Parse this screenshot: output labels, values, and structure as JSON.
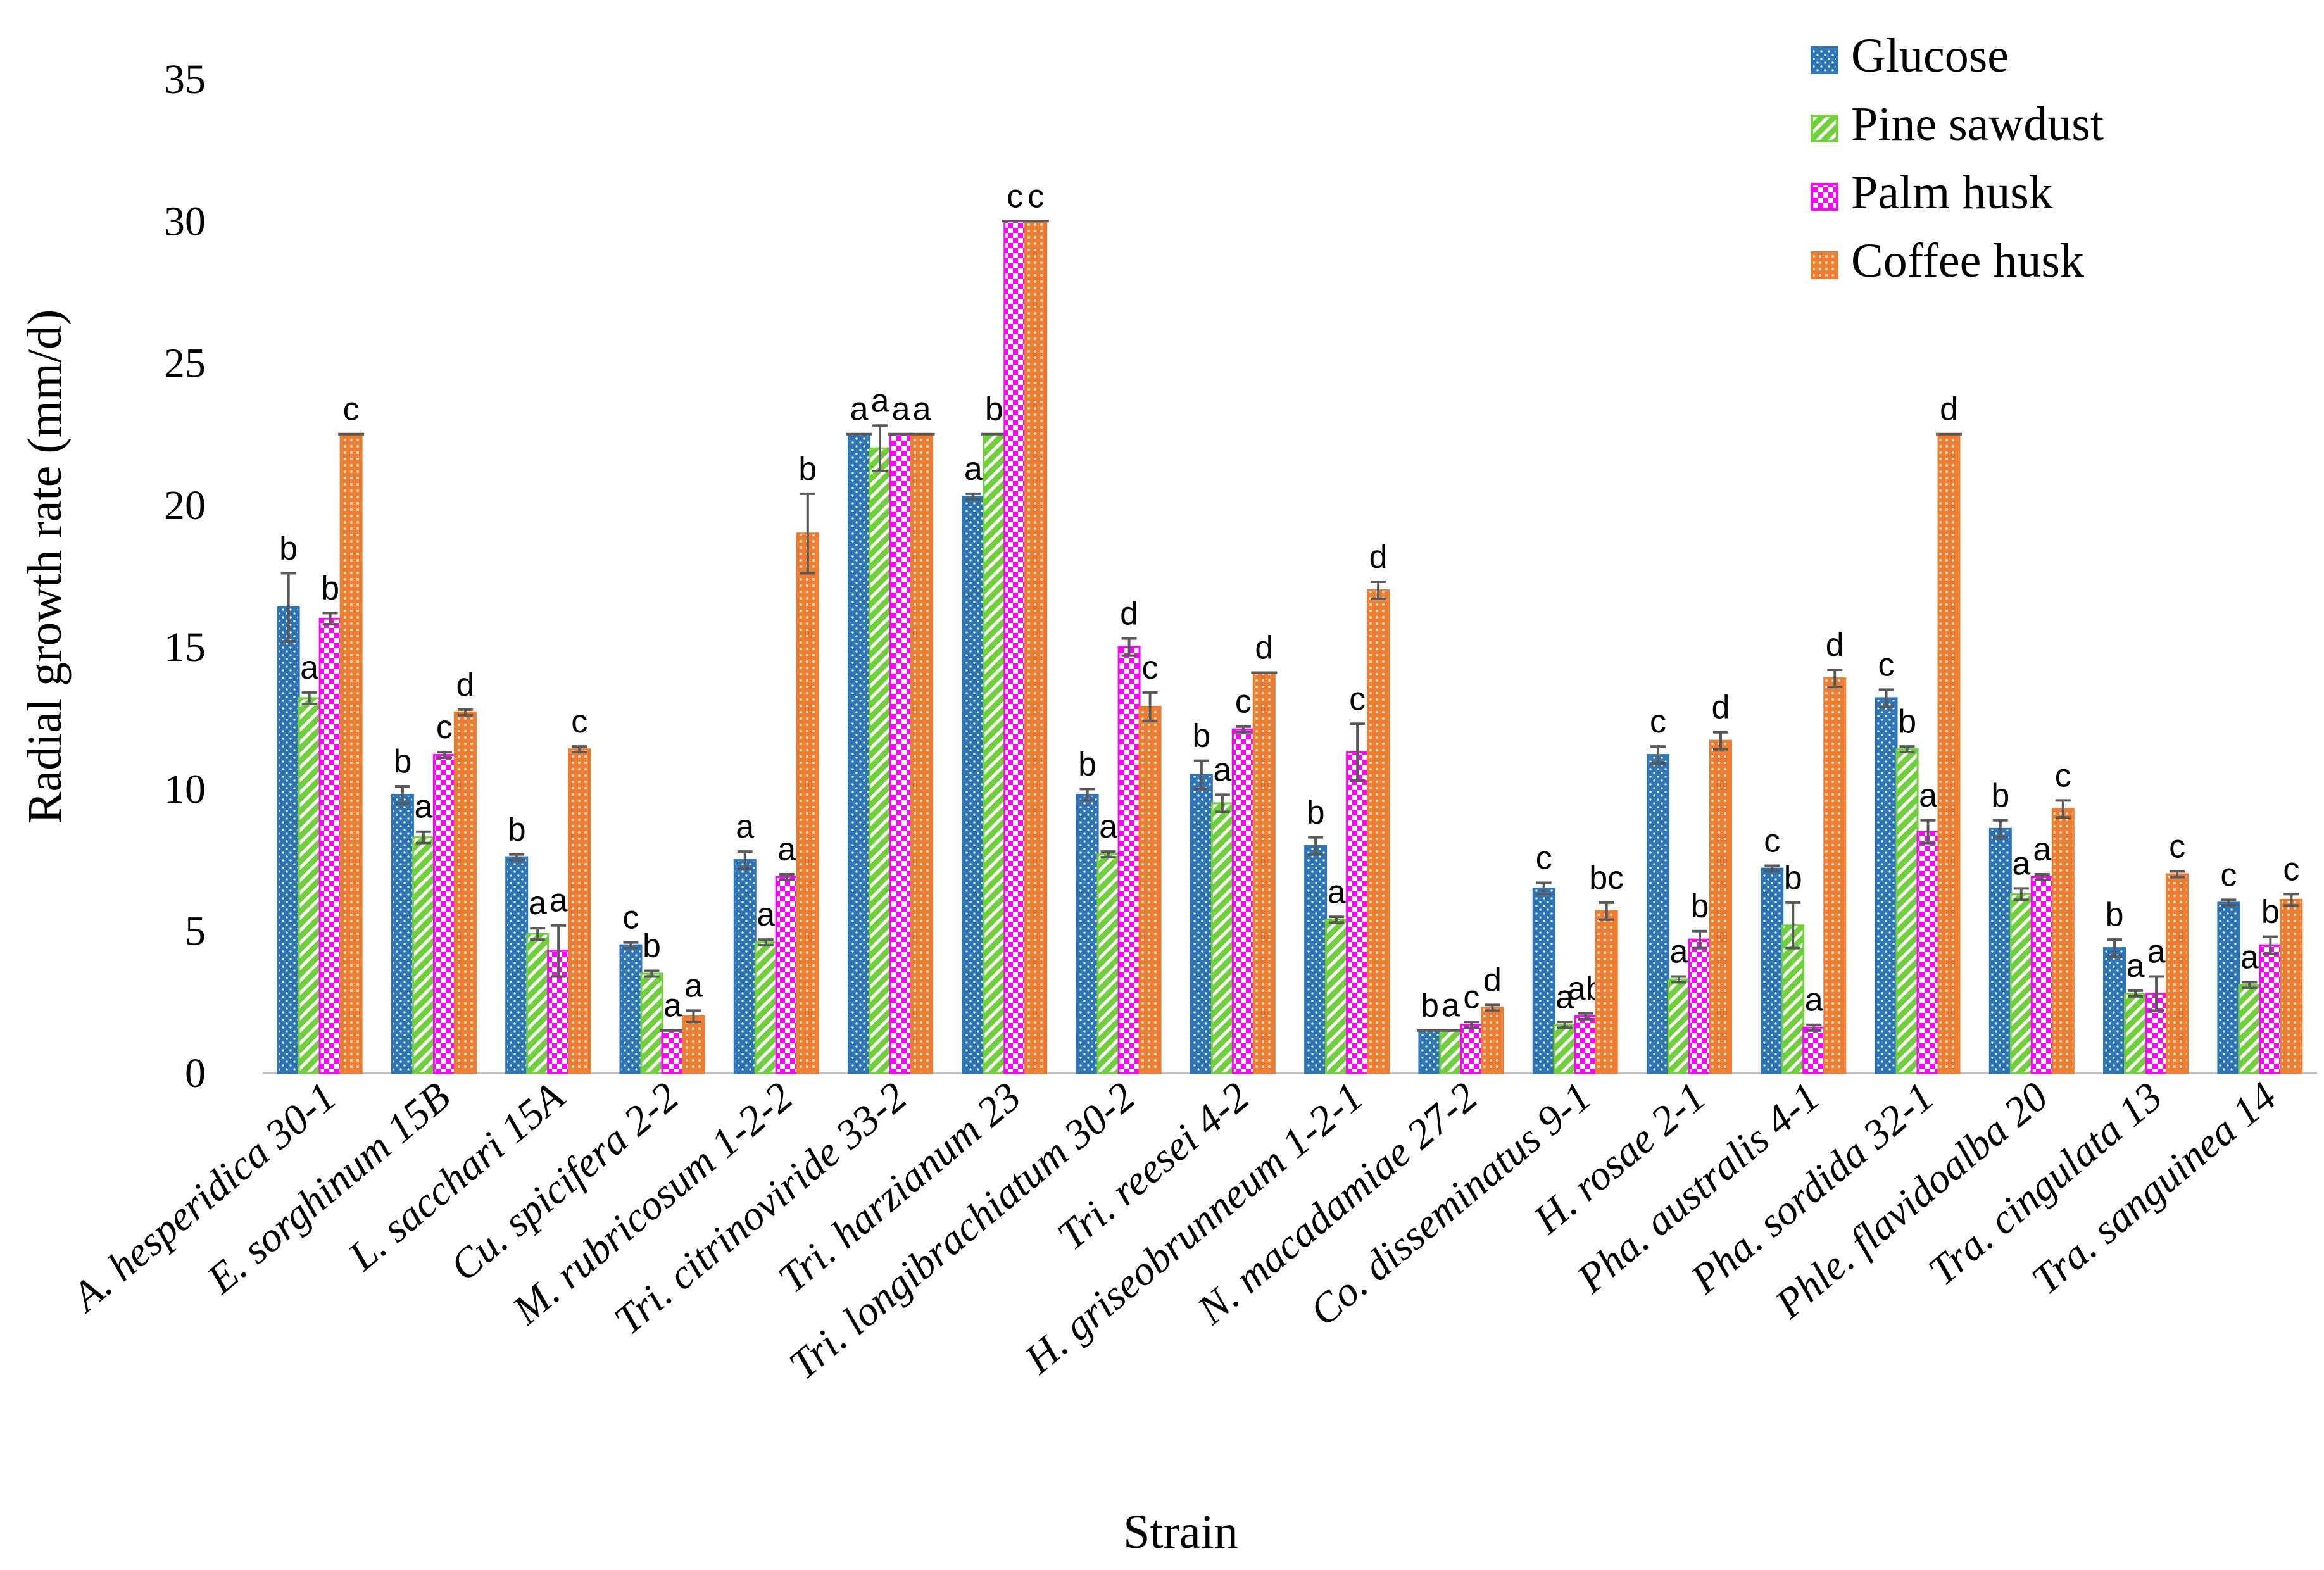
{
  "chart_data": {
    "type": "bar",
    "title": "",
    "xlabel": "Strain",
    "ylabel": "Radial growth rate (mm/d)",
    "ylim": [
      0,
      35
    ],
    "yticks": [
      0,
      5,
      10,
      15,
      20,
      25,
      30,
      35
    ],
    "grid": false,
    "legend_position": "top-right",
    "categories": [
      "A. hesperidica 30-1",
      "E. sorghinum 15B",
      "L. sacchari 15A",
      "Cu. spicifera 2-2",
      "M. rubricosum 1-2-2",
      "Tri. citrinoviride 33-2",
      "Tri. harzianum  23",
      "Tri. longibrachiatum 30-2",
      "Tri. reesei 4-2",
      "H. griseobrunneum 1-2-1",
      "N. macadamiae 27-2",
      "Co. disseminatus 9-1",
      "H. rosae 2-1",
      "Pha. australis 4-1",
      "Pha. sordida 32-1",
      "Phle. flavidoalba 20",
      "Tra. cingulata 13",
      "Tra. sanguinea 14"
    ],
    "series": [
      {
        "name": "Glucose",
        "color": "#2E75B6",
        "values": [
          16.4,
          9.8,
          7.6,
          4.5,
          7.5,
          22.5,
          20.3,
          9.8,
          10.5,
          8.0,
          1.5,
          6.5,
          11.2,
          7.2,
          13.2,
          8.6,
          4.4,
          6.0
        ],
        "errors": [
          1.2,
          0.3,
          0.1,
          0.1,
          0.3,
          0.0,
          0.1,
          0.2,
          0.5,
          0.3,
          0.0,
          0.2,
          0.3,
          0.1,
          0.3,
          0.3,
          0.3,
          0.1
        ],
        "labels": [
          "b",
          "b",
          "b",
          "c",
          "a",
          "a",
          "a",
          "b",
          "b",
          "b",
          "b",
          "c",
          "c",
          "c",
          "c",
          "b",
          "b",
          "c"
        ]
      },
      {
        "name": "Pine sawdust",
        "color": "#70D03C",
        "values": [
          13.2,
          8.3,
          4.9,
          3.5,
          4.6,
          22.0,
          22.5,
          7.7,
          9.5,
          5.4,
          1.5,
          1.7,
          3.3,
          5.2,
          11.4,
          6.3,
          2.8,
          3.1
        ],
        "errors": [
          0.2,
          0.2,
          0.2,
          0.1,
          0.1,
          0.8,
          0.0,
          0.1,
          0.3,
          0.1,
          0.0,
          0.1,
          0.1,
          0.8,
          0.1,
          0.2,
          0.1,
          0.1
        ],
        "labels": [
          "a",
          "a",
          "a",
          "b",
          "a",
          "a",
          "b",
          "a",
          "a",
          "a",
          "a",
          "a",
          "a",
          "b",
          "b",
          "a",
          "a",
          "a"
        ]
      },
      {
        "name": "Palm husk",
        "color": "#FF00FF",
        "values": [
          16.0,
          11.2,
          4.3,
          1.5,
          6.9,
          22.5,
          30.0,
          15.0,
          12.1,
          11.3,
          1.7,
          2.0,
          4.7,
          1.6,
          8.5,
          6.9,
          2.8,
          4.5
        ],
        "errors": [
          0.2,
          0.1,
          0.9,
          0.0,
          0.1,
          0.0,
          0.0,
          0.3,
          0.1,
          1.0,
          0.1,
          0.1,
          0.3,
          0.1,
          0.4,
          0.1,
          0.6,
          0.3
        ],
        "labels": [
          "b",
          "c",
          "a",
          "a",
          "a",
          "a",
          "c",
          "d",
          "c",
          "c",
          "c",
          "ab",
          "b",
          "a",
          "a",
          "a",
          "a",
          "b"
        ]
      },
      {
        "name": "Coffee husk",
        "color": "#ED7D31",
        "values": [
          22.5,
          12.7,
          11.4,
          2.0,
          19.0,
          22.5,
          30.0,
          12.9,
          14.1,
          17.0,
          2.3,
          5.7,
          11.7,
          13.9,
          22.5,
          9.3,
          7.0,
          6.1
        ],
        "errors": [
          0.0,
          0.1,
          0.1,
          0.2,
          1.4,
          0.0,
          0.0,
          0.5,
          0.0,
          0.3,
          0.1,
          0.3,
          0.3,
          0.3,
          0.0,
          0.3,
          0.1,
          0.2
        ],
        "labels": [
          "c",
          "d",
          "c",
          "a",
          "b",
          "a",
          "c",
          "c",
          "d",
          "d",
          "d",
          "bc",
          "d",
          "d",
          "d",
          "c",
          "c",
          "c"
        ]
      }
    ]
  }
}
